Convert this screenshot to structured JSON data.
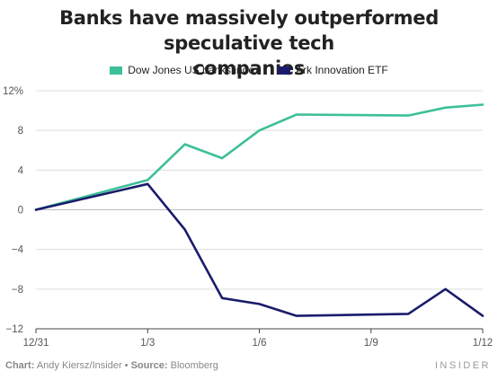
{
  "chart_data": {
    "type": "line",
    "title": "Banks have massively outperformed speculative tech companies",
    "title_lines": [
      "Banks have massively outperformed speculative tech",
      "companies"
    ],
    "x": [
      "12/31",
      "1/3",
      "1/4",
      "1/5",
      "1/6",
      "1/7",
      "1/10",
      "1/11",
      "1/12"
    ],
    "x_ticks": [
      "12/31",
      "1/3",
      "1/6",
      "1/9",
      "1/12"
    ],
    "y_ticks": [
      "12%",
      "8",
      "4",
      "0",
      "−4",
      "−8",
      "−12"
    ],
    "ylim": [
      -12,
      12
    ],
    "grid": true,
    "legend_position": "top-center",
    "series": [
      {
        "name": "Dow Jones US banks index",
        "color": "#3dbf9a",
        "values": [
          0,
          3.0,
          6.6,
          5.2,
          8.0,
          9.6,
          9.5,
          10.3,
          10.6
        ]
      },
      {
        "name": "Ark Innovation ETF",
        "color": "#1a1c6b",
        "values": [
          0,
          2.6,
          -2.0,
          -8.9,
          -9.5,
          -10.7,
          -10.5,
          -8.0,
          -10.7
        ]
      }
    ]
  },
  "footer": {
    "chart_label": "Chart:",
    "chart_credit": "Andy Kiersz/Insider",
    "bullet": "•",
    "source_label": "Source:",
    "source_credit": "Bloomberg"
  },
  "brand": "INSIDER"
}
